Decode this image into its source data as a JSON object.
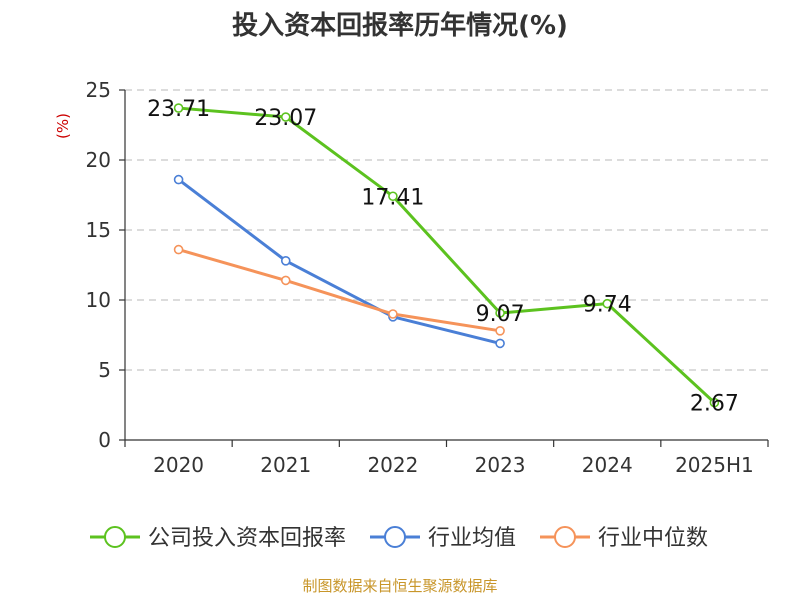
{
  "chart_data": {
    "type": "line",
    "title": "投入资本回报率历年情况(%)",
    "ylabel": "(%)",
    "xlabel": "",
    "categories": [
      "2020",
      "2021",
      "2022",
      "2023",
      "2024",
      "2025H1"
    ],
    "ylim": [
      0,
      25
    ],
    "yticks": [
      0,
      5,
      10,
      15,
      20,
      25
    ],
    "grid": true,
    "legend_position": "bottom",
    "series": [
      {
        "name": "公司投入资本回报率",
        "color": "#5cc21f",
        "values": [
          23.71,
          23.07,
          17.41,
          9.07,
          9.74,
          2.67
        ],
        "labels": [
          "23.71",
          "23.07",
          "17.41",
          "9.07",
          "9.74",
          "2.67"
        ]
      },
      {
        "name": "行业均值",
        "color": "#4a7fd6",
        "values": [
          18.6,
          12.8,
          8.8,
          6.9,
          null,
          null
        ]
      },
      {
        "name": "行业中位数",
        "color": "#f5935a",
        "values": [
          13.6,
          11.4,
          9.0,
          7.8,
          null,
          null
        ]
      }
    ]
  },
  "source_text": "制图数据来自恒生聚源数据库"
}
